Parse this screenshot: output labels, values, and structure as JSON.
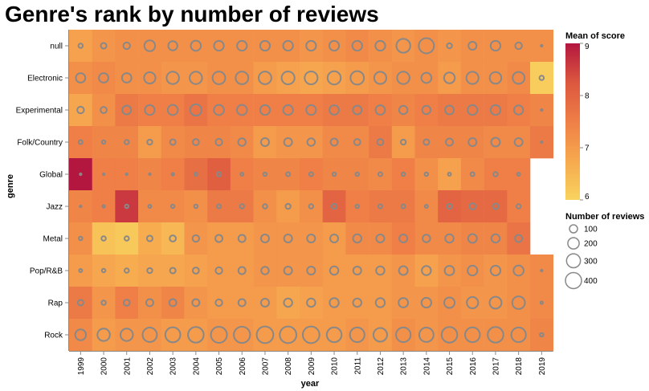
{
  "chart_data": {
    "type": "heatmap",
    "title": "Genre's rank by number of reviews",
    "xlabel": "year",
    "ylabel": "genre",
    "x": [
      "1999",
      "2000",
      "2001",
      "2002",
      "2003",
      "2004",
      "2005",
      "2006",
      "2007",
      "2008",
      "2009",
      "2010",
      "2011",
      "2012",
      "2013",
      "2014",
      "2015",
      "2016",
      "2017",
      "2018",
      "2019"
    ],
    "y": [
      "null",
      "Electronic",
      "Experimental",
      "Folk/Country",
      "Global",
      "Jazz",
      "Metal",
      "Pop/R&B",
      "Rap",
      "Rock"
    ],
    "color_legend": {
      "title": "Mean of score",
      "domain": [
        6,
        9
      ],
      "ticks": [
        "9",
        "8",
        "7",
        "6"
      ],
      "colors": [
        "#f8d35f",
        "#f6a94e",
        "#ef7f47",
        "#dc573f",
        "#b3163f"
      ]
    },
    "size_legend": {
      "title": "Number of reviews",
      "values": [
        100,
        200,
        300,
        400
      ],
      "labels": [
        "100",
        "200",
        "300",
        "400"
      ]
    },
    "mean_score": [
      [
        6.9,
        7.1,
        7.2,
        7.2,
        7.2,
        7.2,
        7.2,
        7.2,
        7.2,
        7.2,
        7.1,
        7.2,
        7.3,
        7.2,
        7.1,
        7.2,
        7.1,
        7.2,
        7.2,
        7.2,
        7.2
      ],
      [
        7.2,
        7.3,
        7.2,
        7.2,
        7.1,
        7.1,
        7.2,
        7.2,
        7.0,
        6.9,
        6.8,
        6.9,
        7.0,
        7.1,
        7.2,
        7.2,
        7.0,
        7.2,
        7.2,
        7.3,
        6.1
      ],
      [
        6.8,
        7.2,
        7.6,
        7.5,
        7.5,
        7.7,
        7.5,
        7.5,
        7.5,
        7.5,
        7.5,
        7.6,
        7.6,
        7.5,
        7.4,
        7.5,
        7.6,
        7.6,
        7.6,
        7.5,
        7.4
      ],
      [
        7.5,
        7.4,
        7.4,
        7.0,
        7.3,
        7.4,
        7.4,
        7.3,
        7.0,
        7.1,
        7.1,
        7.3,
        7.3,
        7.6,
        7.0,
        7.4,
        7.4,
        7.4,
        7.3,
        7.3,
        7.6
      ],
      [
        9.0,
        7.5,
        7.5,
        7.4,
        7.5,
        7.8,
        8.1,
        7.5,
        7.4,
        7.4,
        7.5,
        7.4,
        7.4,
        7.3,
        7.5,
        7.2,
        6.9,
        7.3,
        7.5,
        7.5,
        null
      ],
      [
        7.4,
        7.5,
        8.6,
        7.3,
        7.3,
        7.2,
        7.6,
        7.6,
        7.2,
        7.0,
        7.2,
        8.0,
        7.5,
        7.6,
        7.6,
        7.3,
        8.0,
        7.9,
        7.9,
        7.5,
        null
      ],
      [
        7.2,
        6.3,
        6.2,
        6.7,
        6.5,
        7.1,
        7.0,
        7.0,
        7.1,
        7.1,
        7.1,
        7.0,
        7.3,
        7.3,
        7.5,
        7.3,
        7.3,
        7.4,
        7.4,
        7.7,
        null
      ],
      [
        7.0,
        6.8,
        6.7,
        6.8,
        6.8,
        6.9,
        7.0,
        7.0,
        7.1,
        7.1,
        7.1,
        7.0,
        7.0,
        7.0,
        7.1,
        6.9,
        7.1,
        7.2,
        7.1,
        7.2,
        7.3
      ],
      [
        7.6,
        7.1,
        7.5,
        7.2,
        7.4,
        7.1,
        7.0,
        7.0,
        7.0,
        6.8,
        6.9,
        7.0,
        7.0,
        7.0,
        7.1,
        7.1,
        7.2,
        7.1,
        7.1,
        7.2,
        7.3
      ],
      [
        7.3,
        7.0,
        7.1,
        7.1,
        7.0,
        7.0,
        7.1,
        7.1,
        7.0,
        7.0,
        7.0,
        7.0,
        7.1,
        7.0,
        7.2,
        7.1,
        7.2,
        7.2,
        7.2,
        7.2,
        7.4
      ]
    ],
    "num_reviews": [
      [
        30,
        50,
        70,
        180,
        130,
        160,
        150,
        150,
        150,
        150,
        150,
        150,
        150,
        150,
        300,
        360,
        40,
        100,
        150,
        70,
        5
      ],
      [
        140,
        140,
        140,
        200,
        240,
        240,
        250,
        250,
        250,
        260,
        260,
        270,
        280,
        230,
        240,
        160,
        180,
        230,
        210,
        220,
        30
      ],
      [
        70,
        60,
        120,
        150,
        160,
        200,
        160,
        160,
        150,
        150,
        150,
        140,
        120,
        140,
        110,
        110,
        120,
        150,
        150,
        130,
        5
      ],
      [
        25,
        20,
        30,
        40,
        50,
        60,
        70,
        90,
        100,
        100,
        90,
        80,
        60,
        60,
        40,
        50,
        80,
        100,
        120,
        100,
        5
      ],
      [
        5,
        5,
        5,
        5,
        10,
        15,
        30,
        15,
        20,
        25,
        25,
        20,
        20,
        25,
        20,
        20,
        15,
        25,
        30,
        15,
        0
      ],
      [
        5,
        10,
        20,
        15,
        20,
        20,
        25,
        30,
        30,
        40,
        30,
        40,
        20,
        25,
        25,
        15,
        40,
        60,
        50,
        30,
        0
      ],
      [
        20,
        30,
        30,
        50,
        60,
        70,
        80,
        80,
        100,
        100,
        100,
        100,
        110,
        100,
        100,
        90,
        110,
        120,
        110,
        80,
        0
      ],
      [
        15,
        20,
        30,
        40,
        50,
        60,
        70,
        80,
        90,
        100,
        100,
        110,
        100,
        110,
        120,
        130,
        140,
        150,
        150,
        160,
        5
      ],
      [
        50,
        30,
        60,
        80,
        80,
        80,
        70,
        80,
        100,
        110,
        110,
        130,
        110,
        130,
        140,
        150,
        170,
        200,
        220,
        250,
        10
      ],
      [
        180,
        240,
        240,
        320,
        350,
        380,
        400,
        410,
        430,
        430,
        430,
        340,
        330,
        290,
        330,
        320,
        380,
        340,
        380,
        330,
        20
      ]
    ]
  }
}
